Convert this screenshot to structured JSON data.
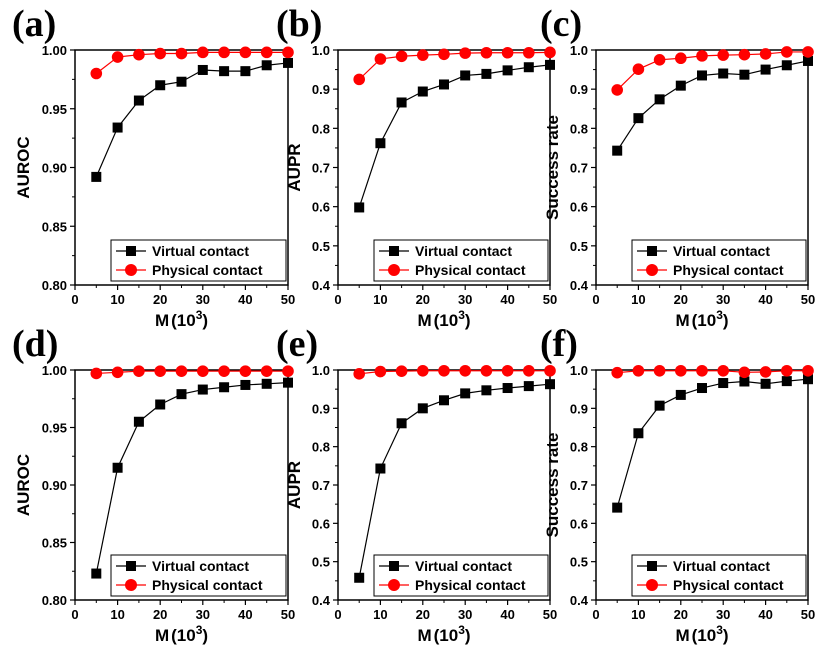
{
  "figure": {
    "series_names": [
      "Virtual contact",
      "Physical contact"
    ],
    "series_colors": [
      "#000000",
      "#ff0000"
    ],
    "marker_shapes": [
      "square",
      "circle"
    ]
  },
  "chart_data": [
    {
      "type": "line",
      "panel_label": "(a)",
      "xlabel": "M(10^3)",
      "xlabel_main": "M",
      "xlabel_unit": "(10",
      "xlabel_exp": "3",
      "xlabel_close": ")",
      "ylabel": "AUROC",
      "xlim": [
        0,
        50
      ],
      "ylim": [
        0.8,
        1.0
      ],
      "xticks": [
        0,
        10,
        20,
        30,
        40,
        50
      ],
      "xtick_labels": [
        "0",
        "10",
        "20",
        "30",
        "40",
        "50"
      ],
      "yticks": [
        0.8,
        0.85,
        0.9,
        0.95,
        1.0
      ],
      "ytick_labels": [
        "0.80",
        "0.85",
        "0.90",
        "0.95",
        "1.00"
      ],
      "legend": "bottom-right",
      "x": [
        5,
        10,
        15,
        20,
        25,
        30,
        35,
        40,
        45,
        50
      ],
      "series": [
        {
          "name": "Virtual contact",
          "values": [
            0.892,
            0.934,
            0.957,
            0.97,
            0.973,
            0.983,
            0.982,
            0.982,
            0.987,
            0.989
          ]
        },
        {
          "name": "Physical contact",
          "values": [
            0.98,
            0.994,
            0.996,
            0.997,
            0.997,
            0.998,
            0.998,
            0.998,
            0.998,
            0.998
          ]
        }
      ]
    },
    {
      "type": "line",
      "panel_label": "(b)",
      "xlabel": "M(10^3)",
      "xlabel_main": "M",
      "xlabel_unit": "(10",
      "xlabel_exp": "3",
      "xlabel_close": ")",
      "ylabel": "AUPR",
      "xlim": [
        0,
        50
      ],
      "ylim": [
        0.4,
        1.0
      ],
      "xticks": [
        0,
        10,
        20,
        30,
        40,
        50
      ],
      "xtick_labels": [
        "0",
        "10",
        "20",
        "30",
        "40",
        "50"
      ],
      "yticks": [
        0.4,
        0.5,
        0.6,
        0.7,
        0.8,
        0.9,
        1.0
      ],
      "ytick_labels": [
        "0.4",
        "0.5",
        "0.6",
        "0.7",
        "0.8",
        "0.9",
        "1.0"
      ],
      "legend": "bottom-right",
      "x": [
        5,
        10,
        15,
        20,
        25,
        30,
        35,
        40,
        45,
        50
      ],
      "series": [
        {
          "name": "Virtual contact",
          "values": [
            0.598,
            0.762,
            0.866,
            0.894,
            0.912,
            0.935,
            0.939,
            0.948,
            0.956,
            0.962
          ]
        },
        {
          "name": "Physical contact",
          "values": [
            0.925,
            0.977,
            0.984,
            0.987,
            0.989,
            0.992,
            0.993,
            0.993,
            0.993,
            0.994
          ]
        }
      ]
    },
    {
      "type": "line",
      "panel_label": "(c)",
      "xlabel": "M(10^3)",
      "xlabel_main": "M",
      "xlabel_unit": "(10",
      "xlabel_exp": "3",
      "xlabel_close": ")",
      "ylabel": "Success rate",
      "xlim": [
        0,
        50
      ],
      "ylim": [
        0.4,
        1.0
      ],
      "xticks": [
        0,
        10,
        20,
        30,
        40,
        50
      ],
      "xtick_labels": [
        "0",
        "10",
        "20",
        "30",
        "40",
        "50"
      ],
      "yticks": [
        0.4,
        0.5,
        0.6,
        0.7,
        0.8,
        0.9,
        1.0
      ],
      "ytick_labels": [
        "0.4",
        "0.5",
        "0.6",
        "0.7",
        "0.8",
        "0.9",
        "1.0"
      ],
      "legend": "bottom-right",
      "x": [
        5,
        10,
        15,
        20,
        25,
        30,
        35,
        40,
        45,
        50
      ],
      "series": [
        {
          "name": "Virtual contact",
          "values": [
            0.743,
            0.826,
            0.874,
            0.909,
            0.935,
            0.94,
            0.937,
            0.95,
            0.961,
            0.972
          ]
        },
        {
          "name": "Physical contact",
          "values": [
            0.898,
            0.951,
            0.975,
            0.979,
            0.985,
            0.987,
            0.988,
            0.99,
            0.995,
            0.995
          ]
        }
      ]
    },
    {
      "type": "line",
      "panel_label": "(d)",
      "xlabel": "M(10^3)",
      "xlabel_main": "M",
      "xlabel_unit": "(10",
      "xlabel_exp": "3",
      "xlabel_close": ")",
      "ylabel": "AUROC",
      "xlim": [
        0,
        50
      ],
      "ylim": [
        0.8,
        1.0
      ],
      "xticks": [
        0,
        10,
        20,
        30,
        40,
        50
      ],
      "xtick_labels": [
        "0",
        "10",
        "20",
        "30",
        "40",
        "50"
      ],
      "yticks": [
        0.8,
        0.85,
        0.9,
        0.95,
        1.0
      ],
      "ytick_labels": [
        "0.80",
        "0.85",
        "0.90",
        "0.95",
        "1.00"
      ],
      "legend": "bottom-right",
      "x": [
        5,
        10,
        15,
        20,
        25,
        30,
        35,
        40,
        45,
        50
      ],
      "series": [
        {
          "name": "Virtual contact",
          "values": [
            0.823,
            0.915,
            0.955,
            0.97,
            0.979,
            0.983,
            0.985,
            0.987,
            0.988,
            0.989
          ]
        },
        {
          "name": "Physical contact",
          "values": [
            0.997,
            0.998,
            0.999,
            0.999,
            0.999,
            0.999,
            0.999,
            0.999,
            0.999,
            0.999
          ]
        }
      ]
    },
    {
      "type": "line",
      "panel_label": "(e)",
      "xlabel": "M(10^3)",
      "xlabel_main": "M",
      "xlabel_unit": "(10",
      "xlabel_exp": "3",
      "xlabel_close": ")",
      "ylabel": "AUPR",
      "xlim": [
        0,
        50
      ],
      "ylim": [
        0.4,
        1.0
      ],
      "xticks": [
        0,
        10,
        20,
        30,
        40,
        50
      ],
      "xtick_labels": [
        "0",
        "10",
        "20",
        "30",
        "40",
        "50"
      ],
      "yticks": [
        0.4,
        0.5,
        0.6,
        0.7,
        0.8,
        0.9,
        1.0
      ],
      "ytick_labels": [
        "0.4",
        "0.5",
        "0.6",
        "0.7",
        "0.8",
        "0.9",
        "1.0"
      ],
      "legend": "bottom-right",
      "x": [
        5,
        10,
        15,
        20,
        25,
        30,
        35,
        40,
        45,
        50
      ],
      "series": [
        {
          "name": "Virtual contact",
          "values": [
            0.458,
            0.743,
            0.861,
            0.9,
            0.921,
            0.939,
            0.947,
            0.953,
            0.958,
            0.963
          ]
        },
        {
          "name": "Physical contact",
          "values": [
            0.99,
            0.996,
            0.997,
            0.998,
            0.998,
            0.998,
            0.998,
            0.998,
            0.998,
            0.998
          ]
        }
      ]
    },
    {
      "type": "line",
      "panel_label": "(f)",
      "xlabel": "M(10^3)",
      "xlabel_main": "M",
      "xlabel_unit": "(10",
      "xlabel_exp": "3",
      "xlabel_close": ")",
      "ylabel": "Success rate",
      "xlim": [
        0,
        50
      ],
      "ylim": [
        0.4,
        1.0
      ],
      "xticks": [
        0,
        10,
        20,
        30,
        40,
        50
      ],
      "xtick_labels": [
        "0",
        "10",
        "20",
        "30",
        "40",
        "50"
      ],
      "yticks": [
        0.4,
        0.5,
        0.6,
        0.7,
        0.8,
        0.9,
        1.0
      ],
      "ytick_labels": [
        "0.4",
        "0.5",
        "0.6",
        "0.7",
        "0.8",
        "0.9",
        "1.0"
      ],
      "legend": "bottom-right",
      "x": [
        5,
        10,
        15,
        20,
        25,
        30,
        35,
        40,
        45,
        50
      ],
      "series": [
        {
          "name": "Virtual contact",
          "values": [
            0.641,
            0.835,
            0.907,
            0.935,
            0.953,
            0.966,
            0.97,
            0.964,
            0.971,
            0.976
          ]
        },
        {
          "name": "Physical contact",
          "values": [
            0.993,
            0.998,
            0.998,
            0.998,
            0.998,
            0.998,
            0.994,
            0.995,
            0.998,
            0.998
          ]
        }
      ]
    }
  ]
}
